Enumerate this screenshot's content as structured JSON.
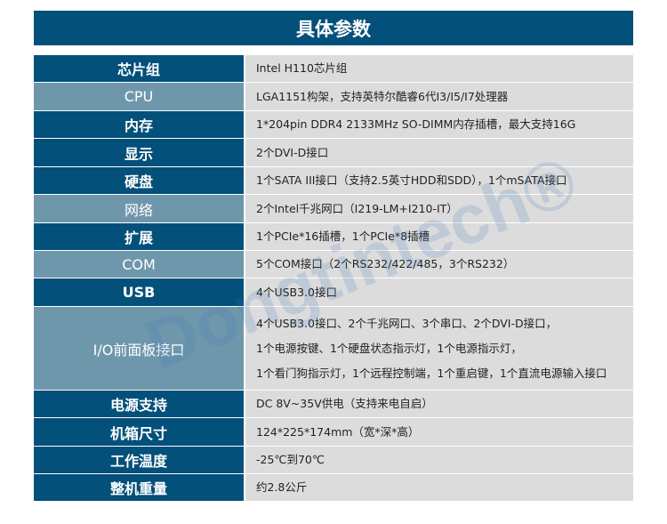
{
  "title": "具体参数",
  "watermark": "Dongtintech®",
  "colors": {
    "header": "#03507a",
    "label_dark": "#03507a",
    "label_light": "#6f97ab",
    "value_bg": "#dcdcdc"
  },
  "rows": [
    {
      "label": "芯片组",
      "lines": [
        "Intel H110芯片组"
      ]
    },
    {
      "label": "CPU",
      "lines": [
        "LGA1151构架，支持英特尔酷睿6代I3/I5/I7处理器"
      ]
    },
    {
      "label": "内存",
      "lines": [
        "1*204pin DDR4 2133MHz SO-DIMM内存插槽，最大支持16G"
      ]
    },
    {
      "label": "显示",
      "lines": [
        "2个DVI-D接口"
      ]
    },
    {
      "label": "硬盘",
      "lines": [
        "1个SATA III接口（支持2.5英寸HDD和SDD），1个mSATA接口"
      ]
    },
    {
      "label": "网络",
      "lines": [
        "2个Intel千兆网口（I219-LM+I210-IT）"
      ]
    },
    {
      "label": "扩展",
      "lines": [
        "1个PCIe*16插槽，1个PCIe*8插槽"
      ]
    },
    {
      "label": "COM",
      "lines": [
        "5个COM接口（2个RS232/422/485，3个RS232）"
      ]
    },
    {
      "label": "USB",
      "lines": [
        "4个USB3.0接口"
      ]
    },
    {
      "label": "I/O前面板接口",
      "lines": [
        "4个USB3.0接口、2个千兆网口、3个串口、2个DVI-D接口，",
        "1个电源按键、1个硬盘状态指示灯，1个电源指示灯，",
        "1个看门狗指示灯，1个远程控制端，1个重启键，1个直流电源输入接口"
      ]
    },
    {
      "label": "电源支持",
      "lines": [
        "DC 8V~35V供电（支持来电自启）"
      ]
    },
    {
      "label": "机箱尺寸",
      "lines": [
        "124*225*174mm（宽*深*高）"
      ]
    },
    {
      "label": "工作温度",
      "lines": [
        "-25℃到70℃"
      ]
    },
    {
      "label": "整机重量",
      "lines": [
        "约2.8公斤"
      ]
    }
  ]
}
